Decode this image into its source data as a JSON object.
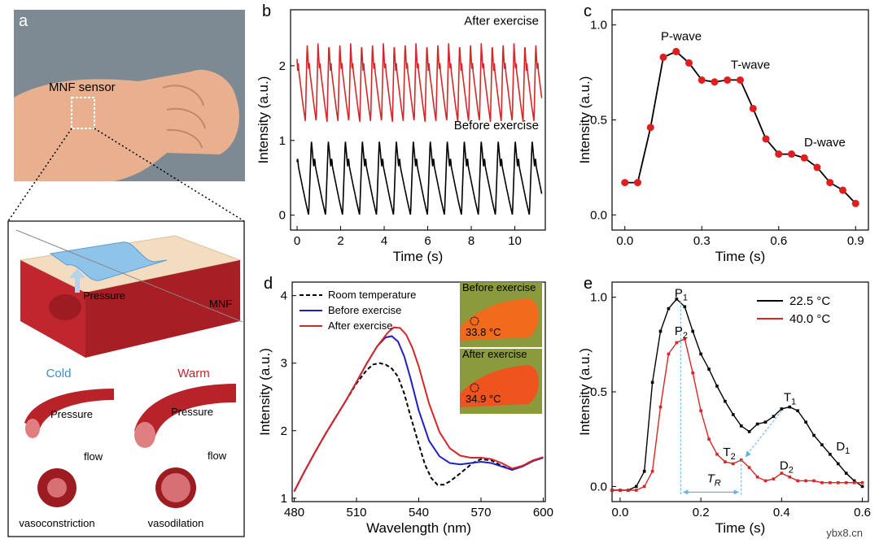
{
  "panel_a": {
    "label": "a",
    "sensor_label": "MNF sensor",
    "pressure_label": "Pressure",
    "mnf_label": "MNF",
    "cold_label": "Cold",
    "warm_label": "Warm",
    "pressure_left": "Pressure",
    "pressure_right": "Pressure",
    "flow_left": "flow",
    "flow_right": "flow",
    "vasoconstriction": "vasoconstriction",
    "vasodilation": "vasodilation",
    "colors": {
      "cold": "#3b8fc9",
      "warm": "#c8202a",
      "vessel": "#b8232a",
      "tissue": "#f3dcc0"
    }
  },
  "watermark": "ybx8.cn",
  "chart_data": [
    {
      "id": "b",
      "panel_label": "b",
      "type": "line",
      "xlabel": "Time (s)",
      "ylabel": "Intensity (a.u.)",
      "xlim": [
        -0.3,
        11.4
      ],
      "ylim": [
        -0.2,
        2.75
      ],
      "xticks": [
        0,
        2,
        4,
        6,
        8,
        10
      ],
      "yticks": [
        0,
        1,
        2
      ],
      "series": [
        {
          "name": "After exercise",
          "color": "#d62728",
          "base": 1.25,
          "amp": 1.05,
          "period": 0.5,
          "phase": 0.12,
          "t_start": 0.0,
          "t_end": 11.25
        },
        {
          "name": "Before exercise",
          "color": "#000000",
          "base": 0.0,
          "amp": 1.0,
          "period": 0.78,
          "phase": 0.25,
          "t_start": 0.0,
          "t_end": 11.25
        }
      ],
      "annotations": [
        {
          "text": "After exercise",
          "x": 11.1,
          "y": 2.55
        },
        {
          "text": "Before exercise",
          "x": 11.1,
          "y": 1.15
        }
      ]
    },
    {
      "id": "c",
      "panel_label": "c",
      "type": "line",
      "xlabel": "Time (s)",
      "ylabel": "Intensity (a.u.)",
      "xlim": [
        -0.05,
        0.95
      ],
      "ylim": [
        -0.08,
        1.08
      ],
      "xticks": [
        0.0,
        0.3,
        0.6,
        0.9
      ],
      "yticks": [
        0.0,
        0.5,
        1.0
      ],
      "color": "#000000",
      "marker_color": "#e21d1d",
      "x": [
        0.0,
        0.05,
        0.1,
        0.15,
        0.2,
        0.25,
        0.3,
        0.35,
        0.4,
        0.45,
        0.5,
        0.55,
        0.6,
        0.65,
        0.7,
        0.75,
        0.8,
        0.85,
        0.9
      ],
      "y": [
        0.17,
        0.17,
        0.46,
        0.83,
        0.86,
        0.8,
        0.71,
        0.7,
        0.71,
        0.71,
        0.56,
        0.4,
        0.32,
        0.32,
        0.3,
        0.25,
        0.17,
        0.13,
        0.06
      ],
      "annotations": [
        {
          "text": "P-wave",
          "x": 0.22,
          "y": 0.92
        },
        {
          "text": "T-wave",
          "x": 0.49,
          "y": 0.77
        },
        {
          "text": "D-wave",
          "x": 0.78,
          "y": 0.36
        }
      ]
    },
    {
      "id": "d",
      "panel_label": "d",
      "type": "line",
      "xlabel": "Wavelength (nm)",
      "ylabel": "Intensity (a.u.)",
      "xlim": [
        479,
        601
      ],
      "ylim": [
        0.95,
        4.2
      ],
      "xticks": [
        480,
        510,
        540,
        570,
        600
      ],
      "yticks": [
        1,
        2,
        3,
        4
      ],
      "series": [
        {
          "name": "Room temperature",
          "color": "#000000",
          "dash": true,
          "x": [
            480,
            485,
            490,
            495,
            500,
            505,
            510,
            515,
            518,
            521,
            524,
            527,
            530,
            533,
            536,
            540,
            543,
            546,
            549,
            552,
            555,
            558,
            562,
            566,
            570,
            575,
            580,
            585,
            590,
            595,
            600
          ],
          "y": [
            1.1,
            1.4,
            1.68,
            1.95,
            2.2,
            2.45,
            2.7,
            2.9,
            2.98,
            3.0,
            2.98,
            2.92,
            2.8,
            2.55,
            2.22,
            1.8,
            1.5,
            1.3,
            1.2,
            1.2,
            1.25,
            1.32,
            1.42,
            1.52,
            1.58,
            1.56,
            1.48,
            1.42,
            1.48,
            1.56,
            1.6
          ]
        },
        {
          "name": "Before exercise",
          "color": "#1f1fc8",
          "dash": false,
          "x": [
            480,
            485,
            490,
            495,
            500,
            505,
            510,
            515,
            520,
            524,
            527,
            530,
            533,
            536,
            540,
            545,
            550,
            555,
            560,
            565,
            570,
            575,
            580,
            585,
            590,
            595,
            600
          ],
          "y": [
            1.1,
            1.4,
            1.68,
            1.95,
            2.2,
            2.45,
            2.72,
            3.0,
            3.25,
            3.38,
            3.4,
            3.32,
            3.1,
            2.78,
            2.3,
            1.85,
            1.62,
            1.52,
            1.5,
            1.52,
            1.54,
            1.52,
            1.47,
            1.42,
            1.47,
            1.55,
            1.6
          ]
        },
        {
          "name": "After exercise",
          "color": "#d62728",
          "dash": false,
          "x": [
            480,
            485,
            490,
            495,
            500,
            505,
            510,
            515,
            520,
            525,
            528,
            531,
            534,
            537,
            540,
            545,
            550,
            555,
            560,
            565,
            570,
            575,
            580,
            585,
            590,
            595,
            600
          ],
          "y": [
            1.1,
            1.4,
            1.68,
            1.95,
            2.2,
            2.45,
            2.72,
            3.0,
            3.25,
            3.45,
            3.53,
            3.52,
            3.42,
            3.22,
            2.95,
            2.4,
            1.98,
            1.74,
            1.63,
            1.6,
            1.6,
            1.58,
            1.52,
            1.44,
            1.48,
            1.56,
            1.61
          ]
        }
      ],
      "legend": "top-left",
      "insets": [
        {
          "title": "Before exercise",
          "temp": "33.8 °C"
        },
        {
          "title": "After exercise",
          "temp": "34.9 °C"
        }
      ]
    },
    {
      "id": "e",
      "panel_label": "e",
      "type": "line",
      "xlabel": "Time (s)",
      "ylabel": "Intensity (a.u.)",
      "xlim": [
        -0.02,
        0.615
      ],
      "ylim": [
        -0.08,
        1.08
      ],
      "xticks": [
        0.0,
        0.2,
        0.4,
        0.6
      ],
      "yticks": [
        0.0,
        0.5,
        1.0
      ],
      "legend": "top-right",
      "series": [
        {
          "name": "22.5 °C",
          "color": "#000000",
          "x": [
            -0.02,
            0.0,
            0.02,
            0.04,
            0.06,
            0.08,
            0.1,
            0.12,
            0.14,
            0.16,
            0.18,
            0.2,
            0.22,
            0.24,
            0.26,
            0.28,
            0.3,
            0.32,
            0.34,
            0.36,
            0.38,
            0.4,
            0.42,
            0.44,
            0.46,
            0.48,
            0.5,
            0.52,
            0.54,
            0.56,
            0.58,
            0.6
          ],
          "y": [
            -0.02,
            -0.02,
            -0.02,
            0.0,
            0.08,
            0.55,
            0.82,
            0.94,
            0.99,
            0.95,
            0.82,
            0.7,
            0.62,
            0.53,
            0.45,
            0.38,
            0.32,
            0.29,
            0.33,
            0.34,
            0.37,
            0.41,
            0.42,
            0.4,
            0.34,
            0.27,
            0.22,
            0.17,
            0.12,
            0.07,
            0.03,
            0.0
          ]
        },
        {
          "name": "40.0 °C",
          "color": "#d62728",
          "x": [
            -0.02,
            0.0,
            0.02,
            0.04,
            0.06,
            0.08,
            0.1,
            0.12,
            0.14,
            0.16,
            0.18,
            0.2,
            0.22,
            0.24,
            0.26,
            0.28,
            0.3,
            0.32,
            0.34,
            0.36,
            0.38,
            0.4,
            0.42,
            0.44,
            0.46,
            0.48,
            0.5,
            0.52,
            0.54,
            0.56,
            0.58,
            0.6
          ],
          "y": [
            -0.02,
            -0.02,
            -0.02,
            -0.02,
            0.0,
            0.08,
            0.42,
            0.7,
            0.76,
            0.78,
            0.6,
            0.4,
            0.25,
            0.17,
            0.13,
            0.12,
            0.14,
            0.1,
            0.05,
            0.03,
            0.04,
            0.07,
            0.05,
            0.03,
            0.03,
            0.03,
            0.02,
            0.02,
            0.02,
            0.02,
            0.02,
            0.02
          ]
        }
      ],
      "annotations": [
        {
          "text": "P1",
          "main": "P",
          "sub": "1",
          "x": 0.135,
          "y": 1.0
        },
        {
          "text": "P2",
          "main": "P",
          "sub": "2",
          "x": 0.135,
          "y": 0.8
        },
        {
          "text": "T1",
          "main": "T",
          "sub": "1",
          "x": 0.405,
          "y": 0.45
        },
        {
          "text": "T2",
          "main": "T",
          "sub": "2",
          "x": 0.255,
          "y": 0.16
        },
        {
          "text": "D1",
          "main": "D",
          "sub": "1",
          "x": 0.535,
          "y": 0.19
        },
        {
          "text": "D2",
          "main": "D",
          "sub": "2",
          "x": 0.395,
          "y": 0.09
        },
        {
          "text": "TR",
          "main": "T",
          "sub": "R",
          "x": 0.215,
          "y": 0.02
        }
      ]
    }
  ]
}
